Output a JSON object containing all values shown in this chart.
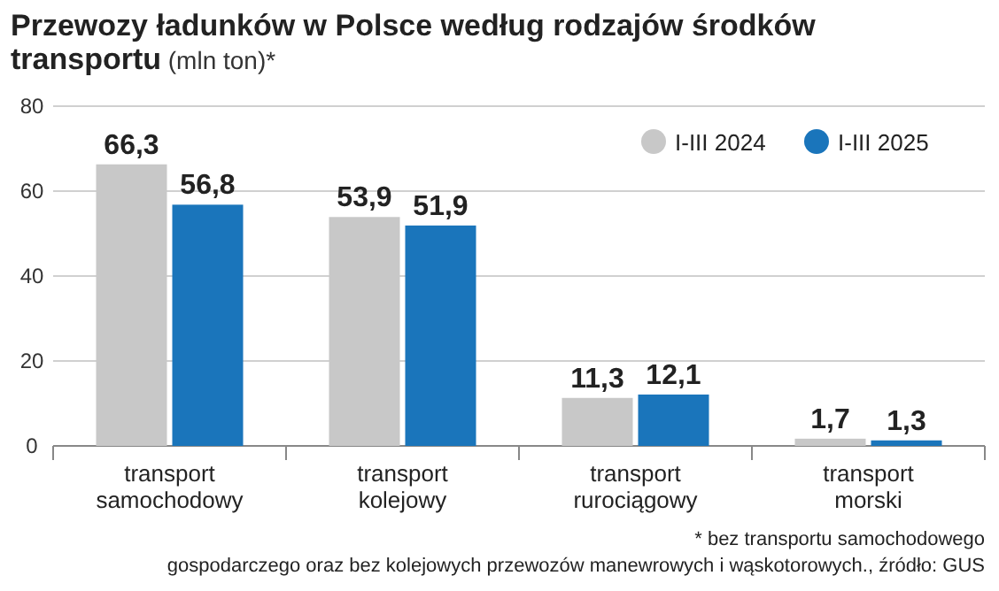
{
  "chart_data": {
    "type": "bar",
    "title": "Przewozy ładunków w Polsce według rodzajów środków transportu",
    "subtitle": "(mln ton)*",
    "categories": [
      "transport samochodowy",
      "transport kolejowy",
      "transport rurociągowy",
      "transport morski"
    ],
    "series": [
      {
        "name": "I-III 2024",
        "color": "#c8c8c8",
        "values": [
          66.3,
          53.9,
          11.3,
          1.7
        ],
        "value_labels": [
          "66,3",
          "53,9",
          "11,3",
          "1,7"
        ]
      },
      {
        "name": "I-III 2025",
        "color": "#1a75bb",
        "values": [
          56.8,
          51.9,
          12.1,
          1.3
        ],
        "value_labels": [
          "56,8",
          "51,9",
          "12,1",
          "1,3"
        ]
      }
    ],
    "ylim": [
      0,
      80
    ],
    "yticks": [
      0,
      20,
      40,
      60,
      80
    ],
    "grid": "y",
    "legend": "top right",
    "annotations": [
      "* bez transportu samochodowego gospodarczego oraz bez kolejowych przewozów manewrowych i wąskotorowych., źródło: GUS"
    ]
  }
}
